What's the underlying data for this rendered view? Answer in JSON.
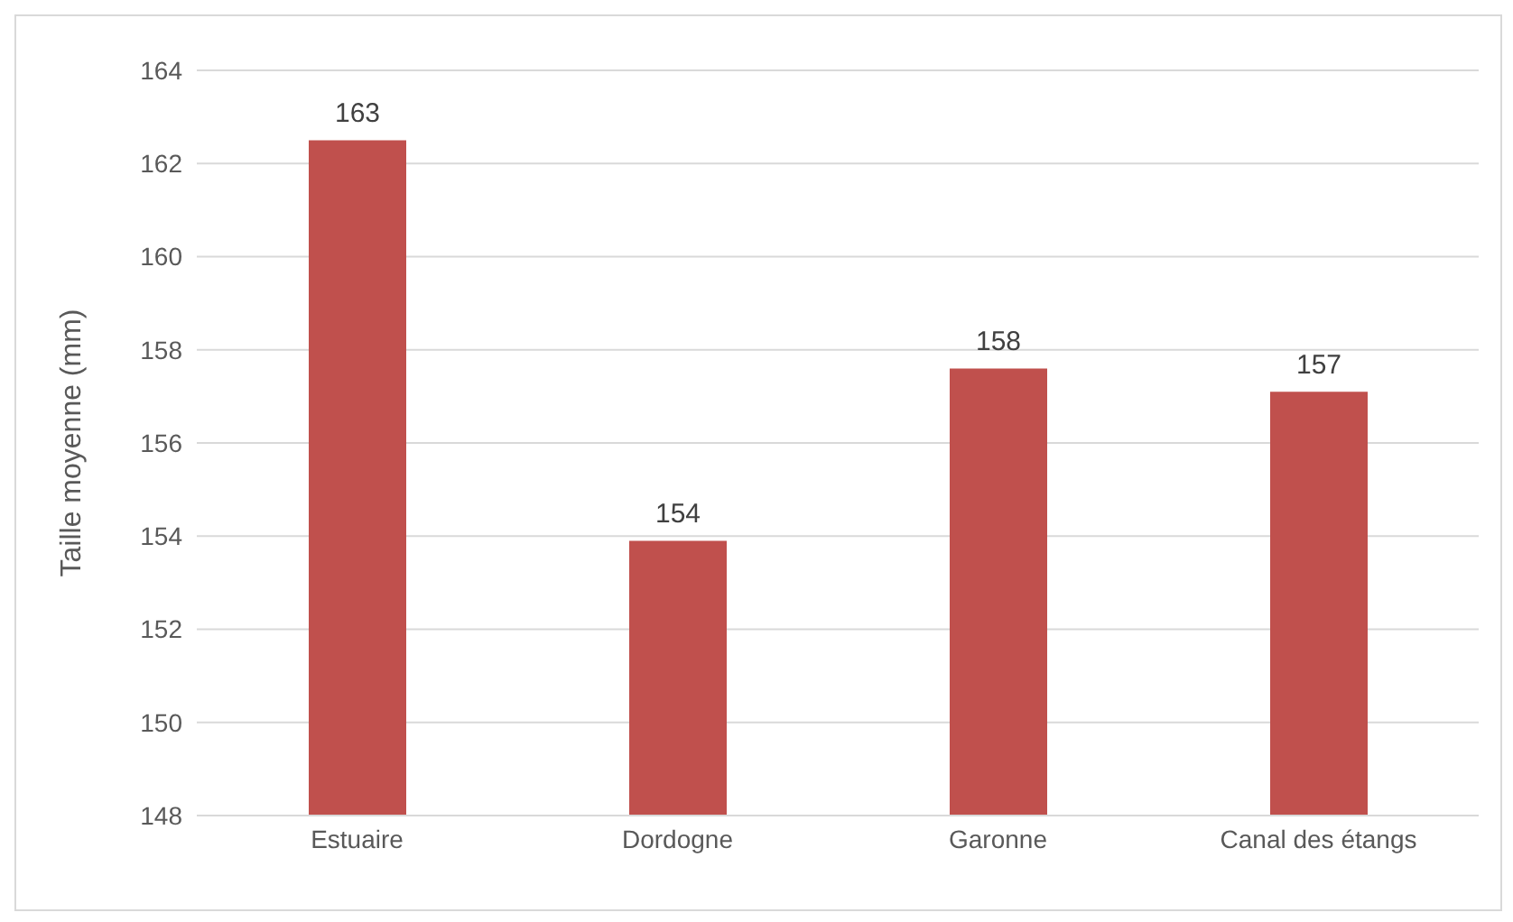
{
  "chart_data": {
    "type": "bar",
    "ylabel": "Taille moyenne (mm)",
    "categories": [
      "Estuaire",
      "Dordogne",
      "Garonne",
      "Canal des étangs"
    ],
    "values": [
      162.5,
      153.9,
      157.6,
      157.1
    ],
    "value_labels": [
      "163",
      "154",
      "158",
      "157"
    ],
    "color": "#c0504d",
    "ylim": [
      148,
      164
    ],
    "yticks": [
      148,
      150,
      152,
      154,
      156,
      158,
      160,
      162,
      164
    ],
    "grid": "y"
  }
}
